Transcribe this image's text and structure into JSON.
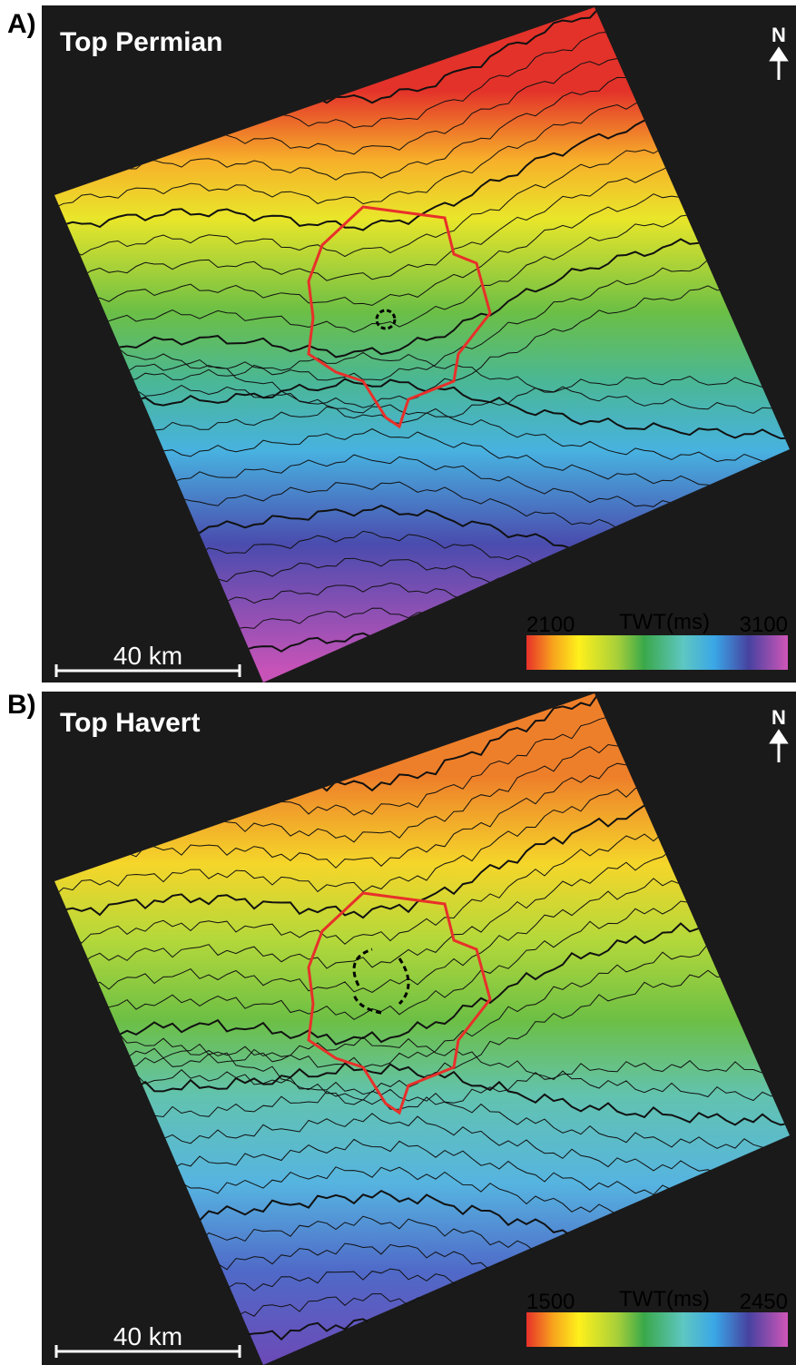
{
  "panels": [
    {
      "label": "A)",
      "title": "Top Permian",
      "north": "N",
      "colorbar": {
        "min_label": "2100",
        "unit": "TWT(ms)",
        "max_label": "3100"
      },
      "scale_bar": "40 km"
    },
    {
      "label": "B)",
      "title": "Top Havert",
      "north": "N",
      "colorbar": {
        "min_label": "1500",
        "unit": "TWT(ms)",
        "max_label": "2450"
      },
      "scale_bar": "40 km"
    }
  ]
}
